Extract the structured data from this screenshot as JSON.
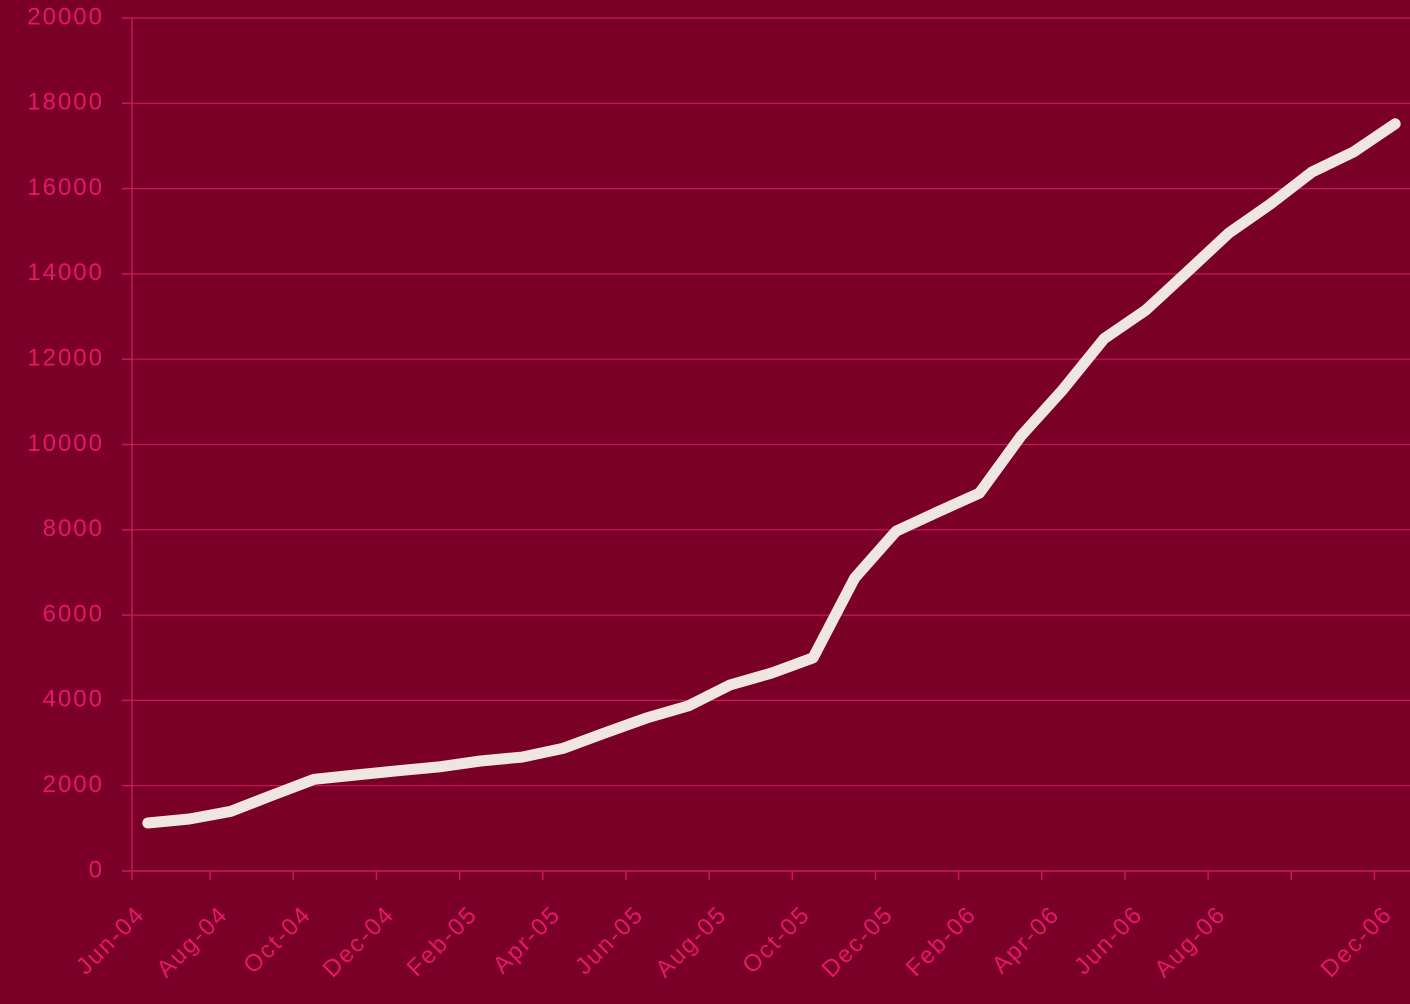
{
  "chart_data": {
    "type": "line",
    "categories": [
      "Jun-04",
      null,
      "Aug-04",
      null,
      "Oct-04",
      null,
      "Dec-04",
      null,
      "Feb-05",
      null,
      "Apr-05",
      null,
      "Jun-05",
      null,
      "Aug-05",
      null,
      "Oct-05",
      null,
      "Dec-05",
      null,
      "Feb-06",
      null,
      "Apr-06",
      null,
      "Jun-06",
      null,
      "Aug-06",
      null,
      null,
      null,
      "Dec-06"
    ],
    "series": [
      {
        "color": "#efe6e2",
        "values": [
          1125,
          1220,
          1400,
          1780,
          2150,
          2250,
          2350,
          2440,
          2580,
          2670,
          2880,
          3240,
          3590,
          3870,
          4360,
          4640,
          5000,
          6870,
          7970,
          8420,
          8860,
          10200,
          11280,
          12480,
          13150,
          14050,
          14960,
          15640,
          16390,
          16860,
          17520
        ]
      }
    ],
    "ylim": [
      0,
      20000
    ],
    "yticks": [
      0,
      2000,
      4000,
      6000,
      8000,
      10000,
      12000,
      14000,
      16000,
      18000,
      20000
    ],
    "grid": true
  }
}
